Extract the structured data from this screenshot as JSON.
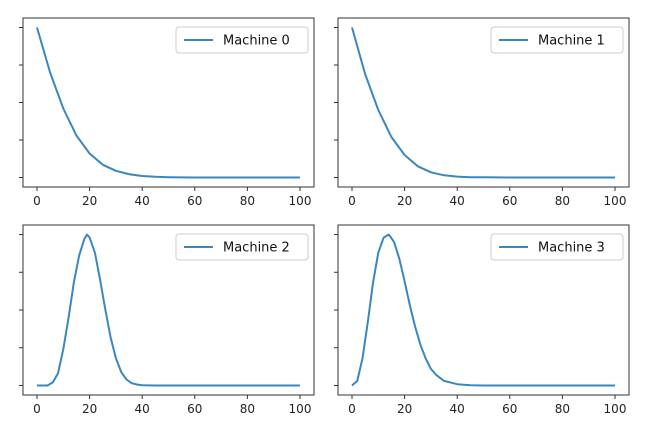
{
  "chart_data": [
    {
      "type": "line",
      "legend": "Machine 0",
      "legend_position": "top-right",
      "x_ticks": [
        "0",
        "20",
        "40",
        "60",
        "80",
        "100"
      ],
      "xlim": [
        0,
        100
      ],
      "ylim": [
        -0.05,
        1.05
      ],
      "y_tick_labels_visible": false,
      "x": [
        0,
        5,
        10,
        15,
        20,
        25,
        30,
        35,
        40,
        45,
        50,
        60,
        70,
        80,
        90,
        100
      ],
      "y": [
        1.0,
        0.7,
        0.46,
        0.28,
        0.16,
        0.085,
        0.045,
        0.022,
        0.01,
        0.005,
        0.002,
        0.0,
        0.0,
        0.0,
        0.0,
        0.0
      ]
    },
    {
      "type": "line",
      "legend": "Machine 1",
      "legend_position": "top-right",
      "x_ticks": [
        "0",
        "20",
        "40",
        "60",
        "80",
        "100"
      ],
      "xlim": [
        0,
        100
      ],
      "ylim": [
        -0.05,
        1.05
      ],
      "y_tick_labels_visible": false,
      "x": [
        0,
        5,
        10,
        15,
        20,
        25,
        30,
        35,
        40,
        45,
        50,
        60,
        70,
        80,
        90,
        100
      ],
      "y": [
        1.0,
        0.69,
        0.45,
        0.27,
        0.15,
        0.075,
        0.035,
        0.015,
        0.006,
        0.002,
        0.001,
        0.0,
        0.0,
        0.0,
        0.0,
        0.0
      ]
    },
    {
      "type": "line",
      "legend": "Machine 2",
      "legend_position": "top-right",
      "x_ticks": [
        "0",
        "20",
        "40",
        "60",
        "80",
        "100"
      ],
      "xlim": [
        0,
        100
      ],
      "ylim": [
        -0.05,
        1.05
      ],
      "y_tick_labels_visible": false,
      "x": [
        0,
        4,
        6,
        8,
        10,
        12,
        14,
        16,
        18,
        19,
        20,
        22,
        24,
        26,
        28,
        30,
        32,
        34,
        36,
        38,
        40,
        45,
        50,
        60,
        70,
        80,
        90,
        100
      ],
      "y": [
        0.0,
        0.0,
        0.02,
        0.08,
        0.24,
        0.45,
        0.68,
        0.86,
        0.97,
        1.0,
        0.98,
        0.88,
        0.7,
        0.5,
        0.32,
        0.18,
        0.09,
        0.04,
        0.015,
        0.006,
        0.002,
        0.0,
        0.0,
        0.0,
        0.0,
        0.0,
        0.0,
        0.0
      ]
    },
    {
      "type": "line",
      "legend": "Machine 3",
      "legend_position": "top-right",
      "x_ticks": [
        "0",
        "20",
        "40",
        "60",
        "80",
        "100"
      ],
      "xlim": [
        0,
        100
      ],
      "ylim": [
        -0.05,
        1.05
      ],
      "y_tick_labels_visible": false,
      "x": [
        0,
        2,
        4,
        6,
        8,
        10,
        12,
        14,
        16,
        18,
        20,
        22,
        24,
        26,
        28,
        30,
        32,
        35,
        40,
        45,
        50,
        60,
        70,
        80,
        90,
        100
      ],
      "y": [
        0.0,
        0.03,
        0.18,
        0.42,
        0.68,
        0.88,
        0.98,
        1.0,
        0.95,
        0.84,
        0.69,
        0.53,
        0.39,
        0.27,
        0.18,
        0.11,
        0.07,
        0.03,
        0.008,
        0.002,
        0.0,
        0.0,
        0.0,
        0.0,
        0.0,
        0.0
      ]
    }
  ],
  "colors": {
    "line": "#3a87c0",
    "axes": "#333333",
    "legend_border": "#cccccc"
  }
}
